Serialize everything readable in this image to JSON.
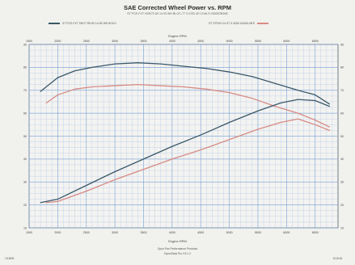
{
  "header": {
    "title": "SAE Corrected Wheel Power vs. RPM",
    "subtitle": "ST PCE-FXT 9/05/73 60 14 93 WH BLOC-77 3 COD-4S COALS 0383E2B59E"
  },
  "legend": {
    "left": "ST PCE-FXT SHOT R5 60 14 8S WH 8OCH",
    "right": "ST STRXH 14 57 3 4Z6S DASKLNES"
  },
  "footer": {
    "line1": "Dyno Pac Performance Products",
    "line2": "Dyno/Data Pro V3.1.2",
    "corner_left": "1/18/06",
    "corner_right": "8:18:18"
  },
  "colors": {
    "background": "#f1f1ee",
    "plot_background": "#f3f3f1",
    "grid": "#7fa4d6",
    "series_dark": "#3a5868",
    "series_red": "#d88a84"
  },
  "chart_data": {
    "type": "line",
    "title": "SAE Corrected Wheel Power vs. RPM",
    "xlabel": "Engine RPM",
    "top_xlabel": "Engine RPM",
    "xlim": [
      1500,
      6900
    ],
    "ylim": [
      10,
      90
    ],
    "x_ticks": [
      "1500",
      "2000",
      "2500",
      "3000",
      "3500",
      "4000",
      "4500",
      "5000",
      "5500",
      "6000",
      "6500"
    ],
    "y_ticks": [
      "10",
      "20",
      "30",
      "40",
      "50",
      "60",
      "70",
      "80",
      "90"
    ],
    "grid": true,
    "legend_position": "top",
    "series": [
      {
        "color": "#3a5868",
        "x": [
          1700,
          2000,
          2300,
          2600,
          3000,
          3400,
          3800,
          4200,
          4600,
          5000,
          5400,
          5800,
          6200,
          6500,
          6750
        ],
        "y": [
          69.5,
          75.5,
          78.5,
          80,
          81.5,
          82,
          81.5,
          80.5,
          79.5,
          78,
          76,
          73,
          70,
          68,
          64
        ]
      },
      {
        "color": "#d88a84",
        "x": [
          1800,
          2000,
          2300,
          2600,
          3000,
          3400,
          3800,
          4200,
          4600,
          5000,
          5400,
          5800,
          6200,
          6500,
          6750
        ],
        "y": [
          64.5,
          68,
          70.5,
          71.5,
          72,
          72.5,
          72,
          71.5,
          70.5,
          69,
          66.5,
          63,
          60,
          57,
          54
        ]
      },
      {
        "color": "#3a5868",
        "x": [
          1700,
          2000,
          2500,
          3000,
          3500,
          4000,
          4500,
          5000,
          5500,
          5900,
          6200,
          6500,
          6750
        ],
        "y": [
          21,
          22.5,
          28.5,
          34.5,
          40,
          45.5,
          50.5,
          56,
          61,
          64.5,
          66,
          65.5,
          63
        ]
      },
      {
        "color": "#d88a84",
        "x": [
          1800,
          2000,
          2500,
          3000,
          3500,
          4000,
          4500,
          5000,
          5500,
          5900,
          6200,
          6500,
          6750
        ],
        "y": [
          21,
          21.5,
          26,
          31,
          35.5,
          40,
          44,
          48.5,
          53,
          56,
          57.5,
          55,
          52.5
        ]
      }
    ]
  }
}
